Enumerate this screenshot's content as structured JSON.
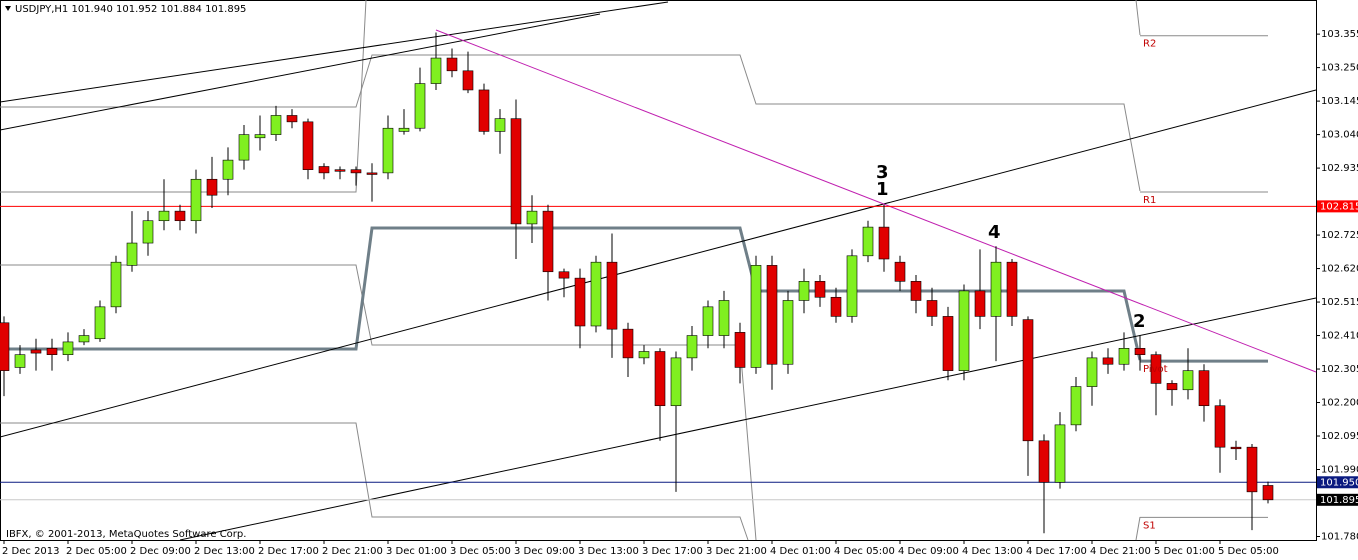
{
  "chart_data": {
    "type": "candlestick",
    "title": "USDJPY,H1  101.940 101.952 101.884 101.895",
    "copyright": "IBFX, © 2001-2013, MetaQuotes Software Corp.",
    "categories": [
      "2 Dec 2013",
      null,
      null,
      null,
      "2 Dec 05:00",
      null,
      null,
      null,
      "2 Dec 09:00",
      null,
      null,
      null,
      "2 Dec 13:00",
      null,
      null,
      null,
      "2 Dec 17:00",
      null,
      null,
      null,
      "2 Dec 21:00",
      null,
      null,
      null,
      "3 Dec 01:00",
      null,
      null,
      null,
      "3 Dec 05:00",
      null,
      null,
      null,
      "3 Dec 09:00",
      null,
      null,
      null,
      "3 Dec 13:00",
      null,
      null,
      null,
      "3 Dec 17:00",
      null,
      null,
      null,
      "3 Dec 21:00",
      null,
      null,
      null,
      "4 Dec 01:00",
      null,
      null,
      null,
      "4 Dec 05:00",
      null,
      null,
      null,
      "4 Dec 09:00",
      null,
      null,
      null,
      "4 Dec 13:00",
      null,
      null,
      null,
      "4 Dec 17:00",
      null,
      null,
      null,
      "4 Dec 21:00",
      null,
      null,
      null,
      "5 Dec 01:00",
      null,
      null,
      null,
      "5 Dec 05:00",
      null,
      null,
      null
    ],
    "open": [
      102.45,
      102.31,
      102.365,
      102.37,
      102.35,
      102.39,
      102.4,
      102.5,
      102.63,
      102.7,
      102.77,
      102.8,
      102.77,
      102.9,
      102.9,
      102.96,
      103.03,
      103.04,
      103.1,
      103.08,
      102.94,
      102.93,
      102.93,
      102.92,
      102.92,
      103.05,
      103.06,
      103.2,
      103.28,
      103.24,
      103.18,
      103.05,
      103.09,
      102.76,
      102.8,
      102.61,
      102.59,
      102.44,
      102.64,
      102.43,
      102.34,
      102.36,
      102.19,
      102.34,
      102.41,
      102.41,
      102.42,
      102.31,
      102.63,
      102.32,
      102.52,
      102.58,
      102.53,
      102.47,
      102.66,
      102.75,
      102.64,
      102.58,
      102.52,
      102.47,
      102.3,
      102.55,
      102.47,
      102.64,
      102.46,
      102.08,
      101.95,
      102.13,
      102.25,
      102.34,
      102.32,
      102.37,
      102.35,
      102.26,
      102.24,
      102.3,
      102.19,
      102.06,
      102.06,
      101.94
    ],
    "high": [
      102.47,
      102.38,
      102.4,
      102.4,
      102.42,
      102.43,
      102.52,
      102.66,
      102.8,
      102.8,
      102.9,
      102.82,
      102.93,
      102.97,
      103.0,
      103.07,
      103.1,
      103.13,
      103.12,
      103.09,
      102.95,
      102.94,
      102.94,
      102.95,
      103.1,
      103.12,
      103.25,
      103.36,
      103.31,
      103.3,
      103.2,
      103.12,
      103.15,
      102.85,
      102.82,
      102.62,
      102.62,
      102.66,
      102.73,
      102.45,
      102.38,
      102.37,
      102.36,
      102.44,
      102.52,
      102.55,
      102.45,
      102.66,
      102.66,
      102.55,
      102.62,
      102.6,
      102.56,
      102.68,
      102.77,
      102.82,
      102.66,
      102.6,
      102.56,
      102.5,
      102.57,
      102.68,
      102.69,
      102.65,
      102.47,
      102.1,
      102.17,
      102.28,
      102.36,
      102.37,
      102.42,
      102.41,
      102.36,
      102.27,
      102.37,
      102.32,
      102.21,
      102.08,
      102.07,
      101.952
    ],
    "low": [
      102.22,
      102.29,
      102.3,
      102.3,
      102.33,
      102.38,
      102.39,
      102.48,
      102.61,
      102.66,
      102.74,
      102.74,
      102.73,
      102.81,
      102.85,
      102.93,
      102.99,
      103.02,
      103.06,
      102.9,
      102.9,
      102.9,
      102.88,
      102.83,
      102.9,
      103.04,
      103.05,
      103.18,
      103.22,
      103.17,
      103.04,
      102.98,
      102.65,
      102.7,
      102.52,
      102.53,
      102.37,
      102.42,
      102.34,
      102.28,
      102.32,
      102.08,
      101.92,
      102.3,
      102.37,
      102.37,
      102.26,
      102.29,
      102.24,
      102.29,
      102.48,
      102.5,
      102.45,
      102.45,
      102.64,
      102.61,
      102.55,
      102.48,
      102.44,
      102.27,
      102.27,
      102.43,
      102.33,
      102.44,
      101.97,
      101.79,
      101.93,
      102.11,
      102.19,
      102.29,
      102.3,
      102.3,
      102.16,
      102.19,
      102.21,
      102.14,
      101.98,
      102.02,
      101.8,
      101.884
    ],
    "close": [
      102.3,
      102.35,
      102.355,
      102.35,
      102.39,
      102.41,
      102.5,
      102.64,
      102.7,
      102.77,
      102.8,
      102.77,
      102.9,
      102.85,
      102.96,
      103.04,
      103.04,
      103.1,
      103.08,
      102.93,
      102.92,
      102.925,
      102.92,
      102.915,
      103.06,
      103.06,
      103.2,
      103.28,
      103.24,
      103.18,
      103.05,
      103.09,
      102.76,
      102.8,
      102.61,
      102.59,
      102.44,
      102.64,
      102.43,
      102.34,
      102.36,
      102.19,
      102.34,
      102.41,
      102.5,
      102.52,
      102.31,
      102.63,
      102.32,
      102.52,
      102.58,
      102.53,
      102.47,
      102.66,
      102.75,
      102.65,
      102.58,
      102.52,
      102.47,
      102.3,
      102.55,
      102.47,
      102.64,
      102.47,
      102.08,
      101.95,
      102.13,
      102.25,
      102.34,
      102.32,
      102.37,
      102.35,
      102.26,
      102.24,
      102.3,
      102.19,
      102.06,
      102.055,
      101.92,
      101.895
    ],
    "up_color": "#80f020",
    "down_color": "#e00000",
    "ylim": [
      101.769,
      103.462
    ],
    "yticks": [
      103.355,
      {
        "value": 103.25,
        "label": "103.250"
      },
      103.145,
      {
        "value": 103.04,
        "label": "103.040"
      },
      102.935,
      102.725,
      {
        "value": 102.62,
        "label": "102.620"
      },
      102.515,
      {
        "value": 102.41,
        "label": "102.410"
      },
      102.305,
      {
        "value": 102.2,
        "label": "102.200"
      },
      102.095,
      {
        "value": 101.99,
        "label": "101.990"
      },
      {
        "value": 101.78,
        "label": "101.780"
      }
    ],
    "pivot_levels": [
      {
        "name": "R2",
        "value": 103.35
      },
      {
        "name": "R1",
        "value": 102.86
      },
      {
        "name": "Pivot",
        "value": 102.33
      },
      {
        "name": "S1",
        "value": 101.84
      }
    ],
    "price_lines": [
      {
        "value": 102.815,
        "color": "#ff0000"
      },
      {
        "value": 101.95,
        "value_label": "101.950",
        "color": "#0a1a80"
      },
      {
        "value": 101.895,
        "color": "#000000"
      }
    ],
    "annotations": [
      "3",
      "1",
      "4",
      "2"
    ]
  }
}
